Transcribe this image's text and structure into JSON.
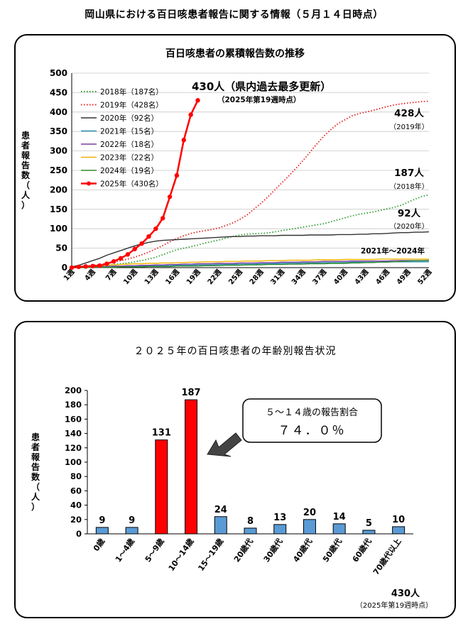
{
  "page_title": "岡山県における百日咳患者報告に関する情報（５月１４日時点）",
  "chart_data": [
    {
      "type": "line",
      "title": "百日咳患者の累積報告数の推移",
      "ylabel": "患者報告数(人)",
      "ylim": [
        0,
        500
      ],
      "yticks": [
        "0",
        "50",
        "100",
        "150",
        "200",
        "250",
        "300",
        "350",
        "400",
        "450",
        "500"
      ],
      "x_tick_labels": [
        "1週",
        "4週",
        "7週",
        "10週",
        "13週",
        "16週",
        "19週",
        "22週",
        "25週",
        "28週",
        "31週",
        "34週",
        "37週",
        "40週",
        "43週",
        "46週",
        "49週",
        "52週"
      ],
      "weeks": 52,
      "series": [
        {
          "name": "2018年",
          "legend": "2018年（187名）",
          "color": "#2e9c2e",
          "style": "dotted",
          "values": [
            1,
            2,
            3,
            4,
            5,
            6,
            8,
            10,
            12,
            15,
            18,
            22,
            27,
            33,
            40,
            46,
            50,
            54,
            58,
            63,
            67,
            71,
            76,
            80,
            84,
            86,
            87,
            88,
            89,
            92,
            95,
            98,
            101,
            104,
            107,
            110,
            113,
            118,
            123,
            128,
            133,
            137,
            140,
            143,
            147,
            151,
            155,
            160,
            168,
            176,
            183,
            187
          ]
        },
        {
          "name": "2019年",
          "legend": "2019年（428名）",
          "color": "#e0201c",
          "style": "dotted",
          "values": [
            1,
            2,
            4,
            6,
            8,
            11,
            14,
            18,
            22,
            27,
            33,
            40,
            48,
            57,
            66,
            75,
            82,
            88,
            92,
            95,
            98,
            102,
            108,
            115,
            124,
            135,
            150,
            165,
            182,
            200,
            218,
            236,
            255,
            275,
            296,
            318,
            338,
            355,
            370,
            380,
            390,
            396,
            400,
            404,
            409,
            414,
            418,
            421,
            423,
            425,
            427,
            428
          ]
        },
        {
          "name": "2020年",
          "legend": "2020年（92名）",
          "color": "#333333",
          "style": "solid",
          "values": [
            2,
            6,
            12,
            18,
            24,
            32,
            38,
            44,
            50,
            56,
            61,
            65,
            68,
            70,
            71,
            72,
            73,
            74,
            75,
            76,
            77,
            78,
            79,
            80,
            80,
            81,
            81,
            82,
            82,
            82,
            83,
            83,
            83,
            83,
            84,
            84,
            84,
            84,
            85,
            85,
            85,
            86,
            86,
            87,
            87,
            88,
            89,
            90,
            90,
            91,
            91,
            92
          ]
        },
        {
          "name": "2021年",
          "legend": "2021年（15名）",
          "color": "#2a8cb0",
          "style": "solid",
          "values": [
            1,
            1,
            1,
            2,
            2,
            2,
            3,
            3,
            3,
            4,
            4,
            4,
            5,
            5,
            5,
            6,
            6,
            6,
            7,
            7,
            7,
            8,
            8,
            8,
            9,
            9,
            9,
            10,
            10,
            10,
            11,
            11,
            11,
            12,
            12,
            12,
            13,
            13,
            13,
            13,
            14,
            14,
            14,
            14,
            14,
            15,
            15,
            15,
            15,
            15,
            15,
            15
          ]
        },
        {
          "name": "2022年",
          "legend": "2022年（18名）",
          "color": "#7b3fa0",
          "style": "solid",
          "values": [
            1,
            1,
            2,
            2,
            3,
            3,
            4,
            4,
            5,
            5,
            6,
            6,
            7,
            7,
            8,
            8,
            9,
            9,
            10,
            10,
            10,
            11,
            11,
            11,
            12,
            12,
            12,
            13,
            13,
            13,
            14,
            14,
            14,
            15,
            15,
            15,
            16,
            16,
            16,
            16,
            17,
            17,
            17,
            17,
            17,
            17,
            18,
            18,
            18,
            18,
            18,
            18
          ]
        },
        {
          "name": "2023年",
          "legend": "2023年（22名）",
          "color": "#f0b400",
          "style": "solid",
          "values": [
            1,
            2,
            3,
            4,
            5,
            6,
            7,
            8,
            9,
            10,
            10,
            11,
            11,
            12,
            12,
            13,
            13,
            14,
            14,
            15,
            15,
            15,
            16,
            16,
            16,
            17,
            17,
            17,
            18,
            18,
            18,
            19,
            19,
            19,
            19,
            20,
            20,
            20,
            20,
            21,
            21,
            21,
            21,
            21,
            22,
            22,
            22,
            22,
            22,
            22,
            22,
            22
          ]
        },
        {
          "name": "2024年",
          "legend": "2024年（19名）",
          "color": "#2e8b2e",
          "style": "solid",
          "values": [
            0,
            0,
            0,
            1,
            1,
            1,
            1,
            2,
            2,
            2,
            2,
            3,
            3,
            3,
            3,
            4,
            4,
            4,
            4,
            5,
            5,
            5,
            6,
            6,
            6,
            7,
            7,
            7,
            8,
            8,
            8,
            9,
            9,
            9,
            10,
            10,
            10,
            11,
            11,
            11,
            12,
            12,
            13,
            13,
            14,
            14,
            15,
            16,
            17,
            18,
            18,
            19
          ]
        },
        {
          "name": "2025年",
          "legend": "2025年（430名）",
          "color": "#ff0000",
          "style": "bold-markers",
          "values": [
            0,
            2,
            3,
            4,
            5,
            10,
            16,
            24,
            34,
            48,
            62,
            80,
            100,
            127,
            182,
            237,
            328,
            393,
            430
          ]
        }
      ],
      "annotations": {
        "highlight_main": "430人（県内過去最多更新）",
        "highlight_sub": "（2025年第19週時点）",
        "label_2019": "428人",
        "label_2019_sub": "（2019年）",
        "label_2018": "187人",
        "label_2018_sub": "（2018年）",
        "label_2020": "92人",
        "label_2020_sub": "（2020年）",
        "label_2021_2024": "2021年～2024年"
      }
    },
    {
      "type": "bar",
      "title": "２０２５年の百日咳患者の年齢別報告状況",
      "ylabel": "患者報告数(人)",
      "ylim": [
        0,
        200
      ],
      "yticks": [
        "0",
        "20",
        "40",
        "60",
        "80",
        "100",
        "120",
        "140",
        "160",
        "180",
        "200"
      ],
      "categories": [
        "0歳",
        "1～4歳",
        "5～9歳",
        "10～14歳",
        "15～19歳",
        "20歳代",
        "30歳代",
        "40歳代",
        "50歳代",
        "60歳代",
        "70歳代以上"
      ],
      "values": [
        9,
        9,
        131,
        187,
        24,
        8,
        13,
        20,
        14,
        5,
        10
      ],
      "highlight_indices": [
        2,
        3
      ],
      "colors": {
        "normal": "#5b9bd5",
        "highlight": "#ff0000"
      },
      "callout_title": "５～１４歳の報告割合",
      "callout_value": "７４．０％",
      "total": "430人",
      "total_note": "（2025年第19週時点）"
    }
  ]
}
